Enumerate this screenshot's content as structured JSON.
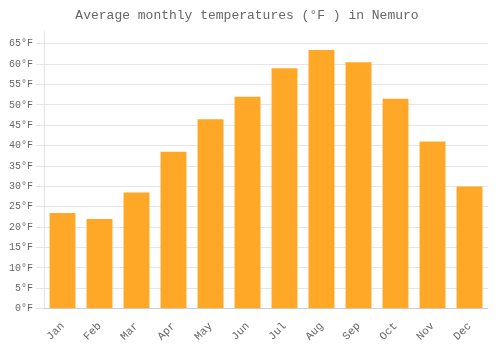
{
  "chart_data": {
    "type": "bar",
    "title": "Average monthly temperatures (°F ) in Nemuro",
    "categories": [
      "Jan",
      "Feb",
      "Mar",
      "Apr",
      "May",
      "Jun",
      "Jul",
      "Aug",
      "Sep",
      "Oct",
      "Nov",
      "Dec"
    ],
    "values": [
      23.5,
      22.0,
      28.5,
      38.5,
      46.5,
      52.0,
      59.0,
      63.5,
      60.5,
      51.5,
      41.0,
      30.0
    ],
    "color": "#FFA726",
    "ylim": [
      0,
      68
    ],
    "yticks": [
      {
        "value": 0,
        "label": "0°F"
      },
      {
        "value": 5,
        "label": "5°F"
      },
      {
        "value": 10,
        "label": "10°F"
      },
      {
        "value": 15,
        "label": "15°F"
      },
      {
        "value": 20,
        "label": "20°F"
      },
      {
        "value": 25,
        "label": "25°F"
      },
      {
        "value": 30,
        "label": "30°F"
      },
      {
        "value": 35,
        "label": "35°F"
      },
      {
        "value": 40,
        "label": "40°F"
      },
      {
        "value": 45,
        "label": "45°F"
      },
      {
        "value": 50,
        "label": "50°F"
      },
      {
        "value": 55,
        "label": "55°F"
      },
      {
        "value": 60,
        "label": "60°F"
      },
      {
        "value": 65,
        "label": "65°F"
      }
    ],
    "grid": true
  }
}
